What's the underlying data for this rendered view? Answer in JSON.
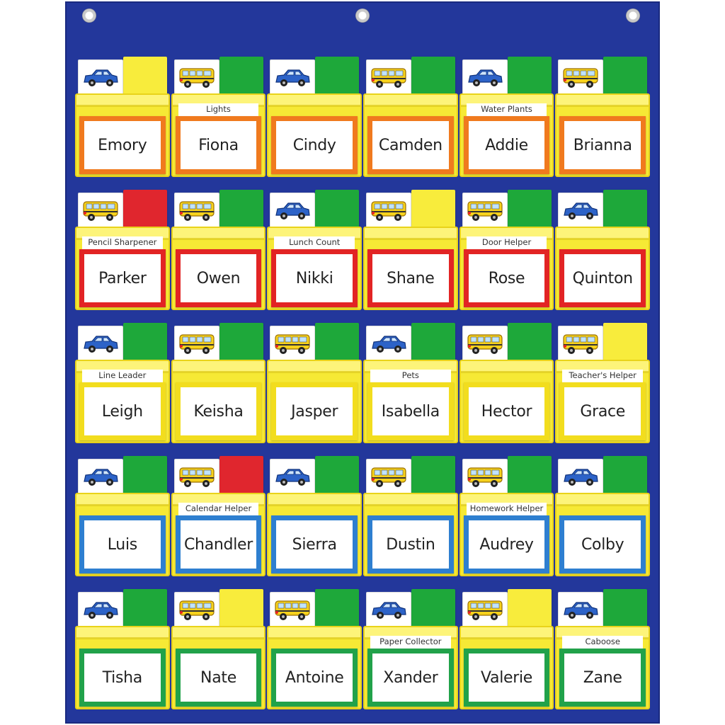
{
  "colors": {
    "board": "#23379b",
    "pocket": "#f6e935",
    "green": "#1ea83a",
    "yellow": "#f8ec3c",
    "red": "#e0262e",
    "orange": "#f07a1e",
    "border_red": "#e22424",
    "border_yellow": "#f2dd1e",
    "border_blue": "#2e7fd0",
    "border_green": "#21a24a"
  },
  "rows": [
    {
      "border": "orange",
      "cells": [
        {
          "name": "Emory",
          "job": "",
          "icon": "car-icon",
          "status": "yellow"
        },
        {
          "name": "Fiona",
          "job": "Lights",
          "icon": "bus-icon",
          "status": "green"
        },
        {
          "name": "Cindy",
          "job": "",
          "icon": "car-icon",
          "status": "green"
        },
        {
          "name": "Camden",
          "job": "",
          "icon": "bus-icon",
          "status": "green"
        },
        {
          "name": "Addie",
          "job": "Water Plants",
          "icon": "car-icon",
          "status": "green"
        },
        {
          "name": "Brianna",
          "job": "",
          "icon": "bus-icon",
          "status": "green"
        }
      ]
    },
    {
      "border": "border_red",
      "cells": [
        {
          "name": "Parker",
          "job": "Pencil Sharpener",
          "icon": "bus-icon",
          "status": "red"
        },
        {
          "name": "Owen",
          "job": "",
          "icon": "bus-icon",
          "status": "green"
        },
        {
          "name": "Nikki",
          "job": "Lunch Count",
          "icon": "car-icon",
          "status": "green"
        },
        {
          "name": "Shane",
          "job": "",
          "icon": "bus-icon",
          "status": "yellow"
        },
        {
          "name": "Rose",
          "job": "Door Helper",
          "icon": "bus-icon",
          "status": "green"
        },
        {
          "name": "Quinton",
          "job": "",
          "icon": "car-icon",
          "status": "green"
        }
      ]
    },
    {
      "border": "border_yellow",
      "cells": [
        {
          "name": "Leigh",
          "job": "Line Leader",
          "icon": "car-icon",
          "status": "green"
        },
        {
          "name": "Keisha",
          "job": "",
          "icon": "bus-icon",
          "status": "green"
        },
        {
          "name": "Jasper",
          "job": "",
          "icon": "bus-icon",
          "status": "green"
        },
        {
          "name": "Isabella",
          "job": "Pets",
          "icon": "car-icon",
          "status": "green"
        },
        {
          "name": "Hector",
          "job": "",
          "icon": "bus-icon",
          "status": "green"
        },
        {
          "name": "Grace",
          "job": "Teacher's Helper",
          "icon": "bus-icon",
          "status": "yellow"
        }
      ]
    },
    {
      "border": "border_blue",
      "cells": [
        {
          "name": "Luis",
          "job": "",
          "icon": "car-icon",
          "status": "green"
        },
        {
          "name": "Chandler",
          "job": "Calendar Helper",
          "icon": "bus-icon",
          "status": "red"
        },
        {
          "name": "Sierra",
          "job": "",
          "icon": "car-icon",
          "status": "green"
        },
        {
          "name": "Dustin",
          "job": "",
          "icon": "bus-icon",
          "status": "green"
        },
        {
          "name": "Audrey",
          "job": "Homework Helper",
          "icon": "bus-icon",
          "status": "green"
        },
        {
          "name": "Colby",
          "job": "",
          "icon": "car-icon",
          "status": "green"
        }
      ]
    },
    {
      "border": "border_green",
      "cells": [
        {
          "name": "Tisha",
          "job": "",
          "icon": "car-icon",
          "status": "green"
        },
        {
          "name": "Nate",
          "job": "",
          "icon": "bus-icon",
          "status": "yellow"
        },
        {
          "name": "Antoine",
          "job": "",
          "icon": "bus-icon",
          "status": "green"
        },
        {
          "name": "Xander",
          "job": "Paper Collector",
          "icon": "car-icon",
          "status": "green"
        },
        {
          "name": "Valerie",
          "job": "",
          "icon": "bus-icon",
          "status": "yellow"
        },
        {
          "name": "Zane",
          "job": "Caboose",
          "icon": "car-icon",
          "status": "green"
        }
      ]
    }
  ]
}
